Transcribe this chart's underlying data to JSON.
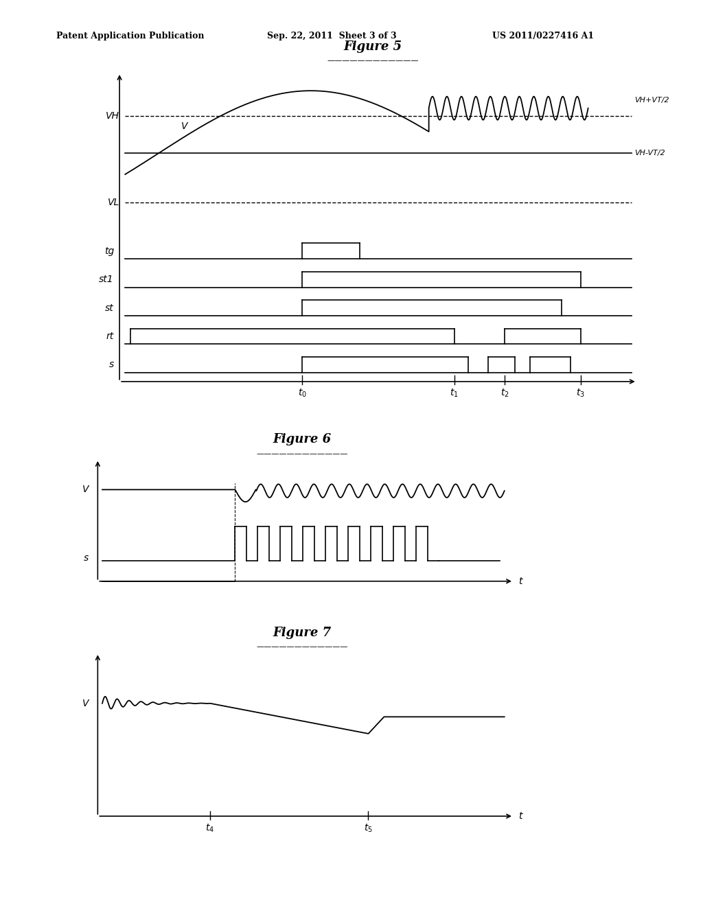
{
  "bg_color": "#ffffff",
  "header_left": "Patent Application Publication",
  "header_center": "Sep. 22, 2011  Sheet 3 of 3",
  "header_right": "US 2011/0227416 A1",
  "fig5_title": "Figure 5",
  "fig6_title": "Figure 6",
  "fig7_title": "Figure 7",
  "text_color": "#000000"
}
